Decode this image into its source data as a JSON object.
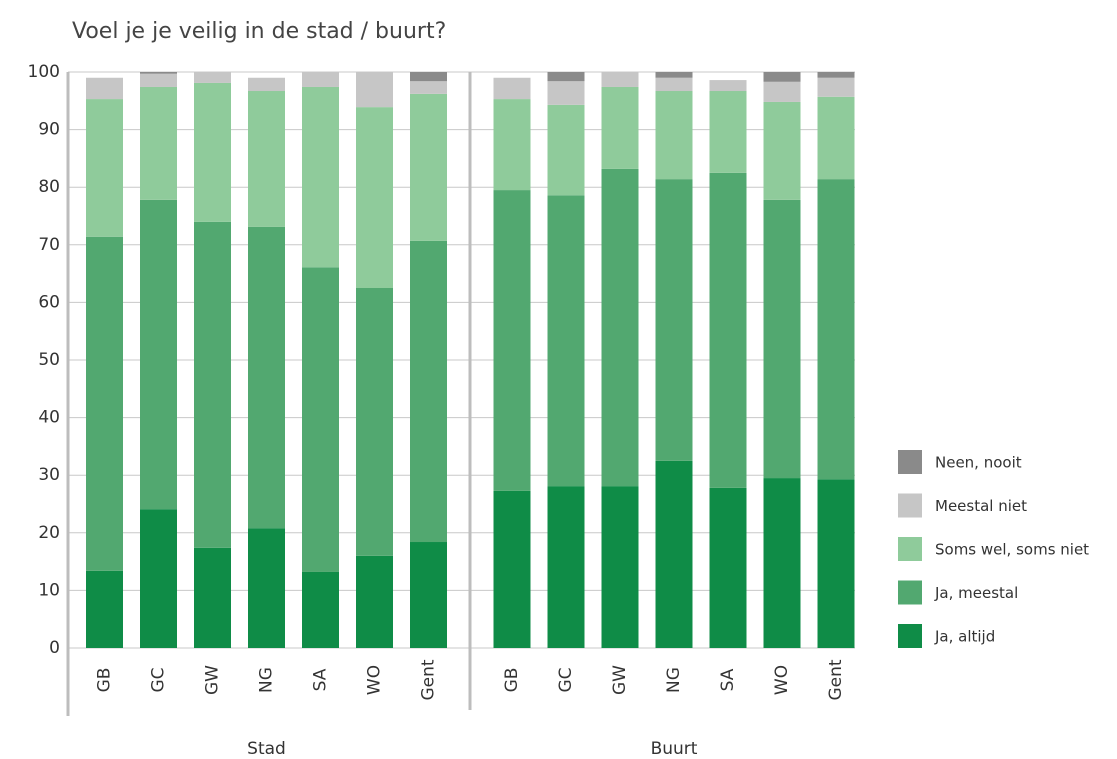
{
  "chart_data": {
    "type": "stacked_bar",
    "title": "Voel je je veilig in de stad / buurt?",
    "groups": [
      {
        "label": "Stad",
        "categories": [
          "GB",
          "GC",
          "GW",
          "NG",
          "SA",
          "WO",
          "Gent"
        ]
      },
      {
        "label": "Buurt",
        "categories": [
          "GB",
          "GC",
          "GW",
          "NG",
          "SA",
          "WO",
          "Gent"
        ]
      }
    ],
    "series": [
      {
        "name": "Ja, altijd",
        "color": "#0f8c47",
        "values": [
          13.4,
          24.1,
          17.4,
          20.8,
          13.2,
          16,
          18.4,
          27.3,
          28.1,
          28.1,
          32.5,
          27.8,
          29.5,
          29.3
        ]
      },
      {
        "name": "Ja, meestal",
        "color": "#52a870",
        "values": [
          58.0,
          53.7,
          56.6,
          52.3,
          52.9,
          46.5,
          52.3,
          52.2,
          50.5,
          55.1,
          48.9,
          54.7,
          48.3,
          52.1
        ]
      },
      {
        "name": "Soms wel, soms niet",
        "color": "#8fcb9b",
        "values": [
          23.9,
          19.6,
          24.1,
          23.6,
          31.3,
          31.4,
          25.5,
          15.8,
          15.7,
          14.2,
          15.3,
          14.2,
          17.0,
          14.3
        ]
      },
      {
        "name": "Meestal niet",
        "color": "#c6c6c6",
        "values": [
          3.7,
          2.3,
          1.9,
          2.3,
          2.6,
          6.1,
          2.2,
          3.7,
          4.1,
          2.6,
          2.3,
          1.9,
          3.5,
          3.3
        ]
      },
      {
        "name": "Neen, nooit",
        "color": "#8a8a8a",
        "values": [
          0,
          0.3,
          0,
          0,
          0,
          0,
          1.6,
          0,
          1.6,
          0,
          1.0,
          0,
          1.7,
          1.0
        ]
      }
    ],
    "ylim": [
      0,
      100
    ],
    "yticks": [
      0,
      10,
      20,
      30,
      40,
      50,
      60,
      70,
      80,
      90,
      100
    ],
    "grid": true
  }
}
